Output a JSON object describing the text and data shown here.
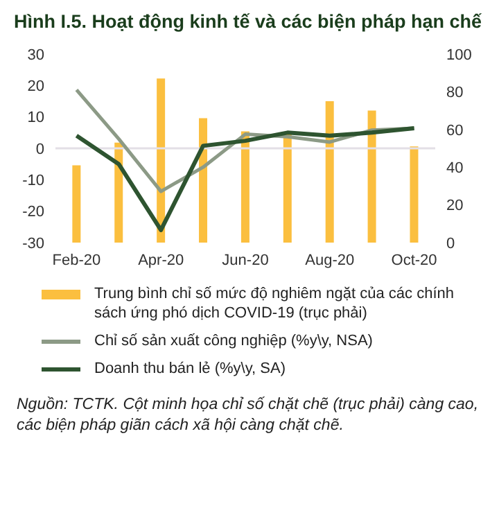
{
  "chart_data": {
    "type": "bar",
    "title": "Hình I.5. Hoạt động kinh tế và các biện pháp hạn chế",
    "categories": [
      "Feb-20",
      null,
      "Apr-20",
      null,
      "Jun-20",
      null,
      "Aug-20",
      null,
      "Oct-20"
    ],
    "series": [
      {
        "name": "Trung bình chỉ số mức độ nghiêm ngặt của các chính sách ứng phó dịch COVID-19 (trục phải)",
        "axis": "y2",
        "color": "#fbbf3f",
        "values": [
          41,
          53,
          87,
          66,
          59,
          58,
          75,
          70,
          51
        ]
      },
      {
        "name": "Chỉ số sản xuất công nghiệp (%y\\y, NSA)",
        "type": "line",
        "color": "#8c9a86",
        "values": [
          18.6,
          3,
          -13.7,
          -6,
          4.5,
          3.7,
          2,
          5.8,
          6.4
        ]
      },
      {
        "name": "Doanh thu bán lẻ (%y\\y, SA)",
        "type": "line",
        "color": "#2e5430",
        "values": [
          4,
          -5,
          -26,
          0.8,
          2.4,
          5,
          4,
          5,
          6.4
        ]
      }
    ],
    "ylim": [
      -30,
      30
    ],
    "yticks": [
      -30,
      -20,
      -10,
      0,
      10,
      20,
      30
    ],
    "y2lim": [
      0,
      100
    ],
    "y2ticks": [
      0,
      20,
      40,
      60,
      80,
      100
    ],
    "ref_lines": [
      {
        "axis": "y",
        "value": 0,
        "color": "#e3dfe6"
      }
    ],
    "grid": false,
    "legend": "bottom",
    "marker": "none",
    "line_style": "solid",
    "annotations": [
      "Nguồn: TCTK. Cột minh họa chỉ số chặt chẽ (trục phải) càng cao, các biện pháp giãn cách xã hội càng chặt chẽ."
    ]
  }
}
